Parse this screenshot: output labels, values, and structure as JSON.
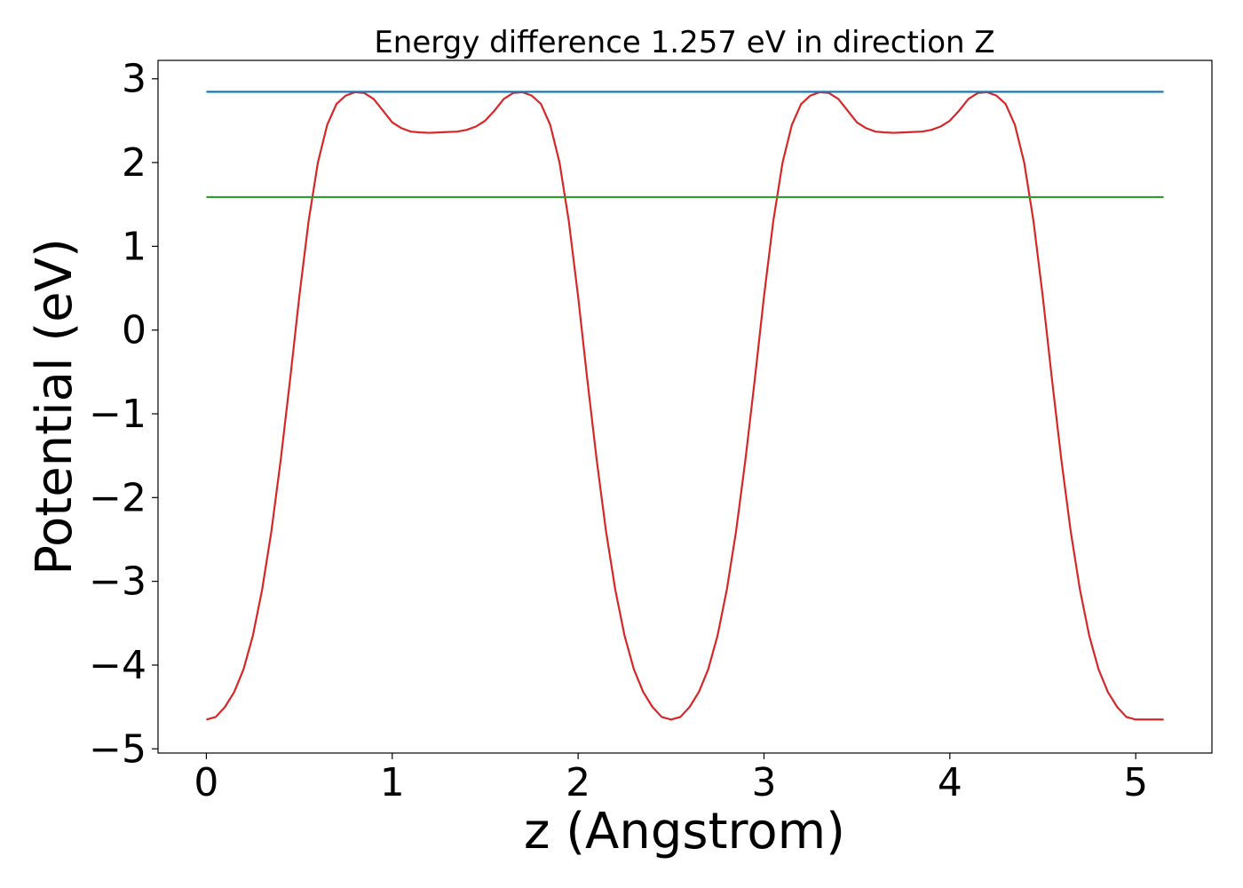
{
  "chart_data": {
    "type": "line",
    "title": "Energy difference 1.257 eV in direction Z",
    "xlabel": "z (Angstrom)",
    "ylabel": "Potential (eV)",
    "xlim": [
      -0.26,
      5.41
    ],
    "ylim": [
      -5.05,
      3.22
    ],
    "xticks": [
      0,
      1,
      2,
      3,
      4,
      5
    ],
    "xtick_labels": [
      "0",
      "1",
      "2",
      "3",
      "4",
      "5"
    ],
    "yticks": [
      -5,
      -4,
      -3,
      -2,
      -1,
      0,
      1,
      2,
      3
    ],
    "ytick_labels": [
      "−5",
      "−4",
      "−3",
      "−2",
      "−1",
      "0",
      "1",
      "2",
      "3"
    ],
    "grid": false,
    "series": [
      {
        "color": "#d62728",
        "x": [
          0,
          0.05,
          0.1,
          0.15,
          0.2,
          0.25,
          0.3,
          0.35,
          0.4,
          0.45,
          0.5,
          0.55,
          0.6,
          0.65,
          0.7,
          0.75,
          0.8,
          0.85,
          0.9,
          0.95,
          1.0,
          1.05,
          1.1,
          1.15,
          1.2,
          1.25,
          1.3,
          1.35,
          1.4,
          1.45,
          1.5,
          1.55,
          1.6,
          1.65,
          1.7,
          1.75,
          1.8,
          1.85,
          1.9,
          1.95,
          2.0,
          2.05,
          2.1,
          2.15,
          2.2,
          2.25,
          2.3,
          2.35,
          2.4,
          2.45,
          2.5,
          2.55,
          2.6,
          2.65,
          2.7,
          2.75,
          2.8,
          2.85,
          2.9,
          2.95,
          3.0,
          3.05,
          3.1,
          3.15,
          3.2,
          3.25,
          3.3,
          3.35,
          3.4,
          3.45,
          3.5,
          3.55,
          3.6,
          3.65,
          3.7,
          3.75,
          3.8,
          3.85,
          3.9,
          3.95,
          4.0,
          4.05,
          4.1,
          4.15,
          4.2,
          4.25,
          4.3,
          4.35,
          4.4,
          4.45,
          4.5,
          4.55,
          4.6,
          4.65,
          4.7,
          4.75,
          4.8,
          4.85,
          4.9,
          4.95,
          5.0,
          5.05,
          5.1,
          5.15
        ],
        "y": [
          -4.65,
          -4.62,
          -4.5,
          -4.32,
          -4.05,
          -3.65,
          -3.1,
          -2.4,
          -1.55,
          -0.6,
          0.4,
          1.3,
          2.0,
          2.45,
          2.7,
          2.8,
          2.84,
          2.83,
          2.76,
          2.62,
          2.48,
          2.41,
          2.37,
          2.36,
          2.355,
          2.36,
          2.365,
          2.37,
          2.39,
          2.43,
          2.5,
          2.62,
          2.76,
          2.83,
          2.84,
          2.8,
          2.7,
          2.45,
          2.0,
          1.3,
          0.4,
          -0.6,
          -1.55,
          -2.4,
          -3.1,
          -3.65,
          -4.05,
          -4.32,
          -4.5,
          -4.62,
          -4.65,
          -4.62,
          -4.5,
          -4.32,
          -4.05,
          -3.65,
          -3.1,
          -2.4,
          -1.55,
          -0.6,
          0.4,
          1.3,
          2.0,
          2.45,
          2.7,
          2.8,
          2.84,
          2.83,
          2.76,
          2.62,
          2.48,
          2.41,
          2.37,
          2.36,
          2.355,
          2.36,
          2.365,
          2.37,
          2.39,
          2.43,
          2.5,
          2.62,
          2.76,
          2.83,
          2.84,
          2.8,
          2.7,
          2.45,
          2.0,
          1.3,
          0.4,
          -0.6,
          -1.55,
          -2.4,
          -3.1,
          -3.65,
          -4.05,
          -4.32,
          -4.5,
          -4.62,
          -4.65,
          -4.65,
          -4.65,
          -4.65
        ]
      },
      {
        "color": "#1f77b4",
        "x": [
          0,
          5.15
        ],
        "y": [
          2.845,
          2.845
        ]
      },
      {
        "color": "#2ca02c",
        "x": [
          0,
          5.15
        ],
        "y": [
          1.588,
          1.588
        ]
      }
    ]
  }
}
